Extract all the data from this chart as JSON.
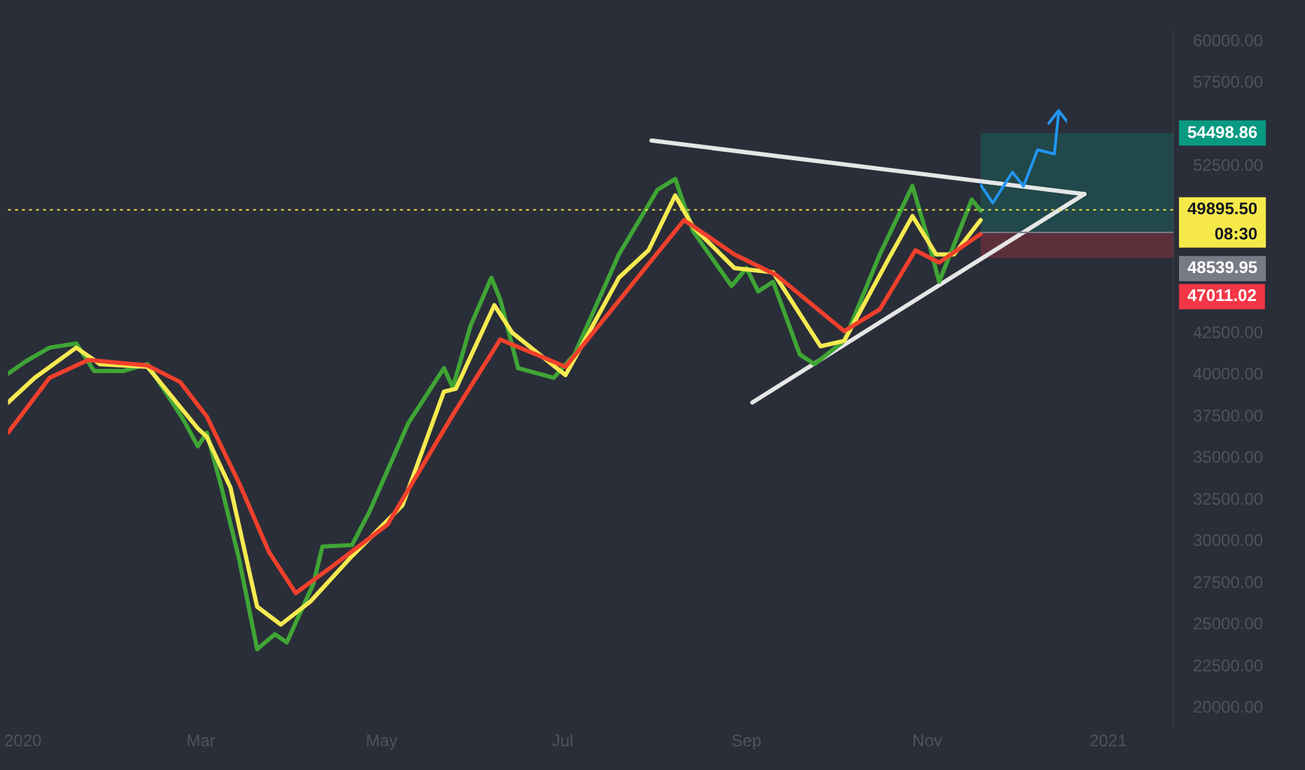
{
  "chart_data": {
    "type": "line",
    "marker": "none",
    "grid": false,
    "legend": false,
    "xlim": [
      "2019-12-27",
      "2021-01-23"
    ],
    "xticks": [
      {
        "value": "2020-01-01",
        "label": "2020"
      },
      {
        "value": "2020-03-01",
        "label": "Mar"
      },
      {
        "value": "2020-05-01",
        "label": "May"
      },
      {
        "value": "2020-07-01",
        "label": "Jul"
      },
      {
        "value": "2020-09-01",
        "label": "Sep"
      },
      {
        "value": "2020-11-01",
        "label": "Nov"
      },
      {
        "value": "2021-01-01",
        "label": "2021"
      }
    ],
    "ylim": [
      18850,
      60700
    ],
    "yticks": [
      {
        "value": 20000,
        "label": "20000.00"
      },
      {
        "value": 22500,
        "label": "22500.00"
      },
      {
        "value": 25000,
        "label": "25000.00"
      },
      {
        "value": 27500,
        "label": "27500.00"
      },
      {
        "value": 30000,
        "label": "30000.00"
      },
      {
        "value": 32500,
        "label": "32500.00"
      },
      {
        "value": 35000,
        "label": "35000.00"
      },
      {
        "value": 37500,
        "label": "37500.00"
      },
      {
        "value": 40000,
        "label": "40000.00"
      },
      {
        "value": 42500,
        "label": "42500.00"
      },
      {
        "value": 52500,
        "label": "52500.00"
      },
      {
        "value": 57500,
        "label": "57500.00"
      },
      {
        "value": 60000,
        "label": "60000.00"
      }
    ],
    "series": [
      {
        "color": "#f0402c",
        "x": [
          "2019-12-27",
          "2020-01-10",
          "2020-01-23",
          "2020-02-12",
          "2020-02-23",
          "2020-03-03",
          "2020-03-14",
          "2020-03-24",
          "2020-04-02",
          "2020-04-14",
          "2020-05-03",
          "2020-05-25",
          "2020-06-10",
          "2020-07-02",
          "2020-07-30",
          "2020-08-11",
          "2020-08-28",
          "2020-09-11",
          "2020-10-04",
          "2020-10-16",
          "2020-10-28",
          "2020-11-05",
          "2020-11-19"
        ],
        "values": [
          36530,
          39820,
          40890,
          40560,
          39570,
          37510,
          33480,
          29370,
          26910,
          28470,
          31020,
          37600,
          42120,
          40480,
          46650,
          49280,
          47220,
          45990,
          42620,
          43930,
          47470,
          46730,
          48450
        ]
      },
      {
        "color": "#f5ea50",
        "x": [
          "2019-12-27",
          "2020-01-05",
          "2020-01-19",
          "2020-01-27",
          "2020-02-12",
          "2020-02-29",
          "2020-03-03",
          "2020-03-11",
          "2020-03-20",
          "2020-03-28",
          "2020-04-07",
          "2020-04-21",
          "2020-05-08",
          "2020-05-22",
          "2020-05-26",
          "2020-06-08",
          "2020-06-14",
          "2020-07-02",
          "2020-07-20",
          "2020-07-30",
          "2020-08-08",
          "2020-08-14",
          "2020-08-28",
          "2020-09-10",
          "2020-09-26",
          "2020-10-04",
          "2020-10-19",
          "2020-10-27",
          "2020-11-04",
          "2020-11-10",
          "2020-11-19"
        ],
        "values": [
          38340,
          39820,
          41630,
          40640,
          40480,
          36780,
          36280,
          33240,
          26090,
          25020,
          26410,
          29130,
          32170,
          38990,
          39160,
          44180,
          42530,
          39980,
          45820,
          47470,
          50760,
          48870,
          46400,
          46150,
          41710,
          42040,
          46970,
          49520,
          47220,
          47220,
          49280
        ]
      },
      {
        "color": "#3fa535",
        "x": [
          "2019-12-27",
          "2020-01-02",
          "2020-01-10",
          "2020-01-19",
          "2020-01-25",
          "2020-02-04",
          "2020-02-12",
          "2020-02-24",
          "2020-02-29",
          "2020-03-03",
          "2020-03-08",
          "2020-03-14",
          "2020-03-20",
          "2020-03-26",
          "2020-03-30",
          "2020-04-08",
          "2020-04-11",
          "2020-04-21",
          "2020-04-27",
          "2020-05-10",
          "2020-05-22",
          "2020-05-25",
          "2020-05-31",
          "2020-06-07",
          "2020-06-10",
          "2020-06-16",
          "2020-06-28",
          "2020-07-05",
          "2020-07-20",
          "2020-08-02",
          "2020-08-08",
          "2020-08-14",
          "2020-08-27",
          "2020-09-01",
          "2020-09-05",
          "2020-09-10",
          "2020-09-19",
          "2020-09-24",
          "2020-10-04",
          "2020-10-16",
          "2020-10-27",
          "2020-11-01",
          "2020-11-05",
          "2020-11-10",
          "2020-11-16",
          "2020-11-19"
        ],
        "values": [
          40070,
          40810,
          41630,
          41880,
          40230,
          40230,
          40640,
          37350,
          35710,
          36530,
          33240,
          28880,
          23540,
          24440,
          23950,
          27480,
          29700,
          29790,
          31840,
          37110,
          40400,
          39240,
          42950,
          45820,
          44510,
          40400,
          39820,
          41220,
          47220,
          51090,
          51750,
          48620,
          45330,
          46400,
          45000,
          45580,
          41220,
          40640,
          42040,
          47220,
          51330,
          48290,
          45580,
          47800,
          50510,
          49850
        ]
      },
      {
        "color": "#e6e6e6",
        "x": [
          "2020-07-31",
          "2020-12-24"
        ],
        "values": [
          54050,
          50840
        ]
      },
      {
        "color": "#e6e6e6",
        "x": [
          "2020-09-03",
          "2020-12-24"
        ],
        "values": [
          38340,
          50840
        ]
      }
    ],
    "bands": [
      {
        "axis": "y",
        "from": 48539.95,
        "to": 54498.86,
        "label": "54498.86",
        "color": "#089981"
      },
      {
        "axis": "y",
        "from": 47011.02,
        "to": 48539.95,
        "label": "47011.02",
        "color": "#f23645"
      }
    ],
    "ref_lines": [
      {
        "axis": "y",
        "value": 49895.5,
        "label": "49895.50",
        "color": "#f7e94a",
        "line_style": "dotted"
      },
      {
        "axis": "y",
        "value": 48539.95,
        "label": "48539.95",
        "color": "#787b86",
        "line_style": "solid"
      }
    ],
    "annotations": [
      "08:30"
    ]
  }
}
